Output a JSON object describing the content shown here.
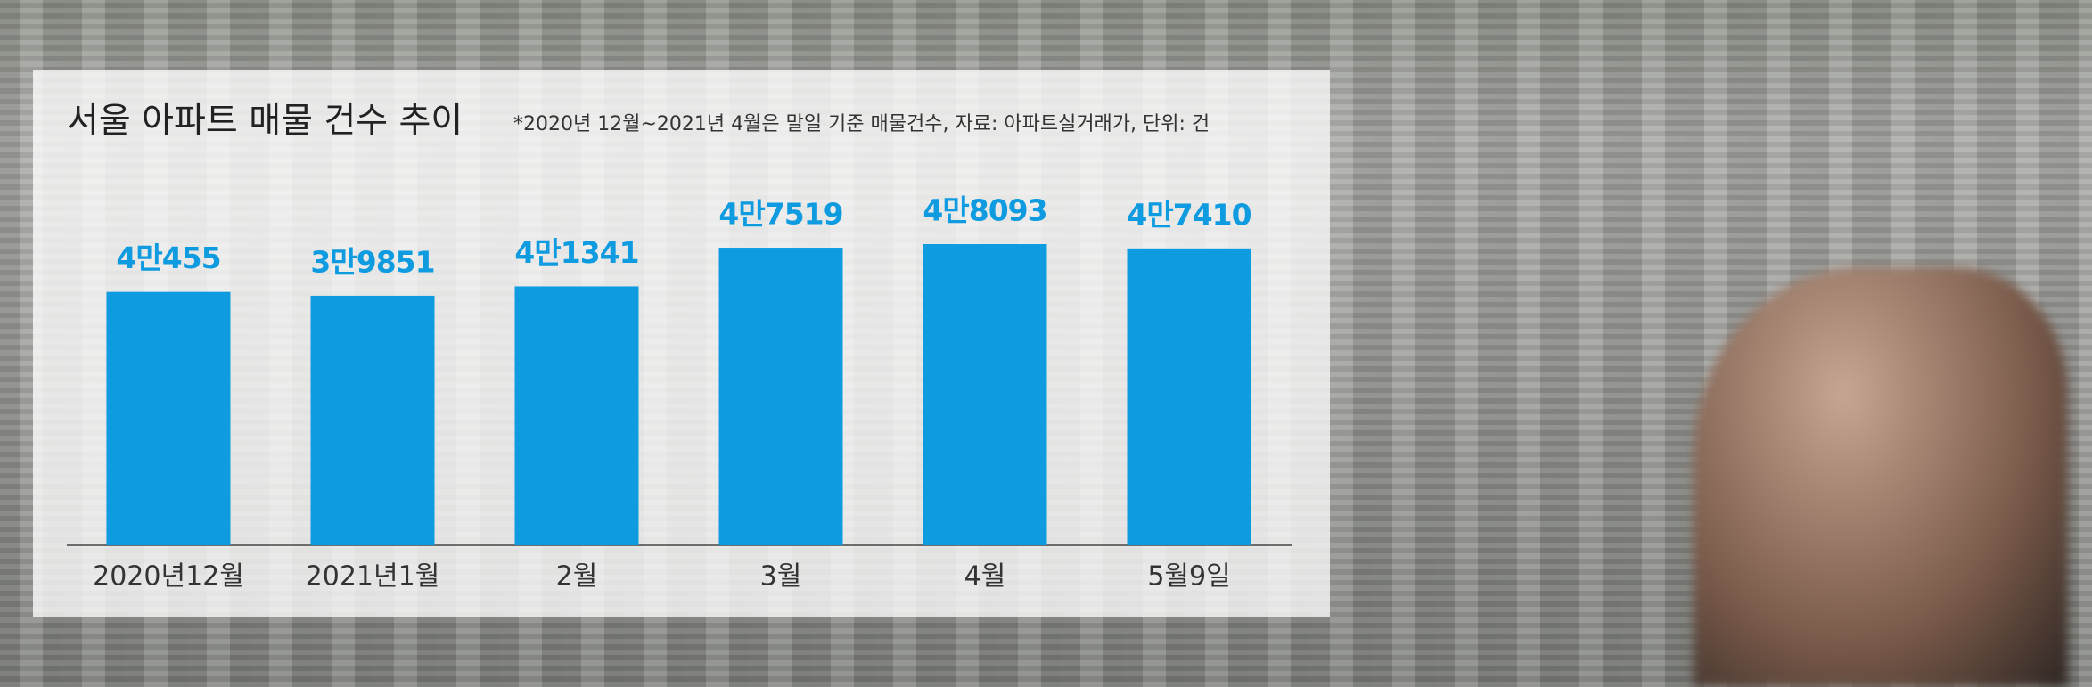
{
  "chart_data": {
    "type": "bar",
    "title": "서울 아파트 매물 건수 추이",
    "subtitle": "*2020년 12월~2021년 4월은 말일 기준 매물건수, 자료: 아파트실거래가, 단위: 건",
    "categories": [
      "2020년12월",
      "2021년1월",
      "2월",
      "3월",
      "4월",
      "5월9일"
    ],
    "values": [
      40455,
      39851,
      41341,
      47519,
      48093,
      47410
    ],
    "value_labels": [
      "4만455",
      "3만9851",
      "4만1341",
      "4만7519",
      "4만8093",
      "4만7410"
    ],
    "color": "#0f9be0"
  }
}
